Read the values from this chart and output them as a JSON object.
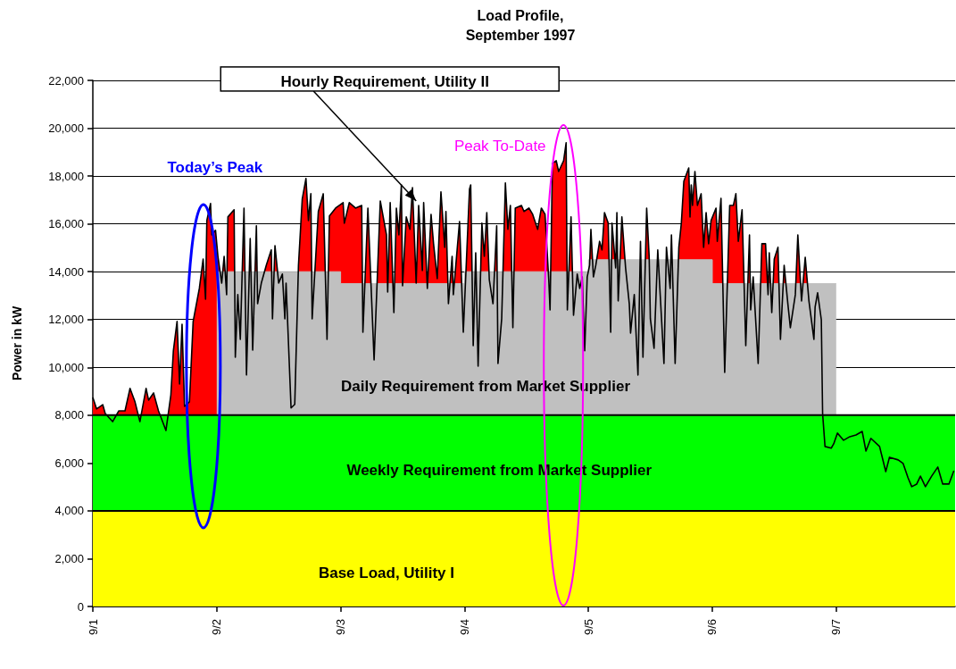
{
  "chart_data": {
    "type": "area",
    "title": "Load Profile,",
    "subtitle": "September 1997",
    "ylabel": "Power in kW",
    "xlim": [
      "1997-09-01",
      "1997-09-07T23:02"
    ],
    "xticks": [
      {
        "value": "1997-09-01",
        "label": "9/1"
      },
      {
        "value": "1997-09-02",
        "label": "9/2"
      },
      {
        "value": "1997-09-03",
        "label": "9/3"
      },
      {
        "value": "1997-09-04",
        "label": "9/4"
      },
      {
        "value": "1997-09-05",
        "label": "9/5"
      },
      {
        "value": "1997-09-06",
        "label": "9/6"
      },
      {
        "value": "1997-09-07",
        "label": "9/7"
      }
    ],
    "ylim": [
      0,
      22000
    ],
    "yticks": [
      0,
      {
        "value": 2000,
        "label": "2,000"
      },
      {
        "value": 4000,
        "label": "4,000"
      },
      {
        "value": 6000,
        "label": "6,000"
      },
      {
        "value": 8000,
        "label": "8,000"
      },
      {
        "value": 10000,
        "label": "10,000"
      },
      {
        "value": 12000,
        "label": "12,000"
      },
      {
        "value": 14000,
        "label": "14,000"
      },
      {
        "value": 16000,
        "label": "16,000"
      },
      {
        "value": 18000,
        "label": "18,000"
      },
      {
        "value": 20000,
        "label": "20,000"
      },
      {
        "value": 22000,
        "label": "22,000"
      }
    ],
    "grid": "y",
    "legend": false,
    "marker": "none",
    "line_style": "solid",
    "x": [
      "1997-09-01T00:00",
      "1997-09-01T00:43",
      "1997-09-01T01:55",
      "1997-09-01T02:24",
      "1997-09-01T03:50",
      "1997-09-01T05:02",
      "1997-09-01T06:14",
      "1997-09-01T07:12",
      "1997-09-01T08:10",
      "1997-09-01T09:07",
      "1997-09-01T10:19",
      "1997-09-01T10:48",
      "1997-09-01T11:46",
      "1997-09-01T12:43",
      "1997-09-01T14:10",
      "1997-09-01T15:07",
      "1997-09-01T15:36",
      "1997-09-01T16:19",
      "1997-09-01T16:48",
      "1997-09-01T17:17",
      "1997-09-01T17:46",
      "1997-09-01T18:43",
      "1997-09-01T19:26",
      "1997-09-01T20:38",
      "1997-09-01T21:22",
      "1997-09-01T21:50",
      "1997-09-01T22:05",
      "1997-09-01T22:48",
      "1997-09-01T23:02",
      "1997-09-01T23:46",
      "1997-09-02T00:14",
      "1997-09-02T00:58",
      "1997-09-02T01:26",
      "1997-09-02T01:55",
      "1997-09-02T02:10",
      "1997-09-02T03:22",
      "1997-09-02T03:36",
      "1997-09-02T04:05",
      "1997-09-02T04:34",
      "1997-09-02T05:17",
      "1997-09-02T05:46",
      "1997-09-02T06:29",
      "1997-09-02T06:58",
      "1997-09-02T07:41",
      "1997-09-02T07:55",
      "1997-09-02T08:38",
      "1997-09-02T09:36",
      "1997-09-02T10:34",
      "1997-09-02T10:48",
      "1997-09-02T11:17",
      "1997-09-02T12:00",
      "1997-09-02T12:43",
      "1997-09-02T13:12",
      "1997-09-02T13:26",
      "1997-09-02T14:24",
      "1997-09-02T15:07",
      "1997-09-02T15:50",
      "1997-09-02T16:34",
      "1997-09-02T17:17",
      "1997-09-02T17:46",
      "1997-09-02T18:14",
      "1997-09-02T18:29",
      "1997-09-02T19:41",
      "1997-09-02T20:38",
      "1997-09-02T21:22",
      "1997-09-02T21:50",
      "1997-09-02T23:02",
      "1997-09-03T00:29",
      "1997-09-03T00:43",
      "1997-09-03T01:41",
      "1997-09-03T02:53",
      "1997-09-03T04:05",
      "1997-09-03T04:19",
      "1997-09-03T05:17",
      "1997-09-03T06:29",
      "1997-09-03T07:41",
      "1997-09-03T08:53",
      "1997-09-03T09:07",
      "1997-09-03T09:36",
      "1997-09-03T10:19",
      "1997-09-03T10:48",
      "1997-09-03T11:17",
      "1997-09-03T11:46",
      "1997-09-03T12:00",
      "1997-09-03T12:43",
      "1997-09-03T13:26",
      "1997-09-03T13:55",
      "1997-09-03T14:38",
      "1997-09-03T15:07",
      "1997-09-03T15:50",
      "1997-09-03T16:05",
      "1997-09-03T16:48",
      "1997-09-03T17:31",
      "1997-09-03T18:00",
      "1997-09-03T18:43",
      "1997-09-03T19:26",
      "1997-09-03T20:10",
      "1997-09-03T20:24",
      "1997-09-03T20:53",
      "1997-09-03T21:36",
      "1997-09-03T21:50",
      "1997-09-03T23:02",
      "1997-09-03T23:46",
      "1997-09-04T00:58",
      "1997-09-04T01:12",
      "1997-09-04T01:41",
      "1997-09-04T02:10",
      "1997-09-04T02:38",
      "1997-09-04T03:22",
      "1997-09-04T03:50",
      "1997-09-04T04:19",
      "1997-09-04T04:48",
      "1997-09-04T05:31",
      "1997-09-04T06:14",
      "1997-09-04T06:29",
      "1997-09-04T07:12",
      "1997-09-04T07:55",
      "1997-09-04T08:24",
      "1997-09-04T08:53",
      "1997-09-04T09:22",
      "1997-09-04T09:50",
      "1997-09-04T11:02",
      "1997-09-04T11:31",
      "1997-09-04T12:29",
      "1997-09-04T13:12",
      "1997-09-04T14:10",
      "1997-09-04T14:53",
      "1997-09-04T15:36",
      "1997-09-04T16:19",
      "1997-09-04T16:34",
      "1997-09-04T17:02",
      "1997-09-04T17:46",
      "1997-09-04T18:14",
      "1997-09-04T19:12",
      "1997-09-04T19:41",
      "1997-09-04T19:55",
      "1997-09-04T20:38",
      "1997-09-04T21:07",
      "1997-09-04T21:50",
      "1997-09-04T22:19",
      "1997-09-04T22:48",
      "1997-09-04T23:17",
      "1997-09-04T23:46",
      "1997-09-05T00:14",
      "1997-09-05T00:29",
      "1997-09-05T00:58",
      "1997-09-05T01:26",
      "1997-09-05T02:10",
      "1997-09-05T02:38",
      "1997-09-05T03:07",
      "1997-09-05T03:50",
      "1997-09-05T04:19",
      "1997-09-05T04:34",
      "1997-09-05T05:17",
      "1997-09-05T05:31",
      "1997-09-05T05:46",
      "1997-09-05T06:29",
      "1997-09-05T07:12",
      "1997-09-05T07:55",
      "1997-09-05T08:10",
      "1997-09-05T08:53",
      "1997-09-05T09:36",
      "1997-09-05T10:05",
      "1997-09-05T10:34",
      "1997-09-05T11:17",
      "1997-09-05T11:46",
      "1997-09-05T12:00",
      "1997-09-05T12:43",
      "1997-09-05T13:26",
      "1997-09-05T14:38",
      "1997-09-05T15:07",
      "1997-09-05T15:50",
      "1997-09-05T16:05",
      "1997-09-05T16:48",
      "1997-09-05T17:31",
      "1997-09-05T18:00",
      "1997-09-05T18:29",
      "1997-09-05T19:26",
      "1997-09-05T19:41",
      "1997-09-05T19:55",
      "1997-09-05T20:10",
      "1997-09-05T20:38",
      "1997-09-05T21:07",
      "1997-09-05T21:50",
      "1997-09-05T22:19",
      "1997-09-05T22:48",
      "1997-09-05T23:17",
      "1997-09-05T23:46",
      "1997-09-06T00:43",
      "1997-09-06T00:58",
      "1997-09-06T01:41",
      "1997-09-06T02:24",
      "1997-09-06T03:22",
      "1997-09-06T04:05",
      "1997-09-06T04:34",
      "1997-09-06T05:02",
      "1997-09-06T05:46",
      "1997-09-06T06:29",
      "1997-09-06T07:12",
      "1997-09-06T07:26",
      "1997-09-06T07:55",
      "1997-09-06T08:53",
      "1997-09-06T09:36",
      "1997-09-06T10:19",
      "1997-09-06T10:48",
      "1997-09-06T11:02",
      "1997-09-06T11:31",
      "1997-09-06T12:00",
      "1997-09-06T12:43",
      "1997-09-06T13:12",
      "1997-09-06T13:55",
      "1997-09-06T14:38",
      "1997-09-06T15:07",
      "1997-09-06T16:05",
      "1997-09-06T16:34",
      "1997-09-06T17:17",
      "1997-09-06T18:00",
      "1997-09-06T18:43",
      "1997-09-06T19:41",
      "1997-09-06T19:55",
      "1997-09-06T20:24",
      "1997-09-06T21:07",
      "1997-09-06T21:22",
      "1997-09-06T21:50",
      "1997-09-06T23:02",
      "1997-09-06T23:31",
      "1997-09-07T00:14",
      "1997-09-07T01:26",
      "1997-09-07T02:38",
      "1997-09-07T03:50",
      "1997-09-07T05:02",
      "1997-09-07T05:46",
      "1997-09-07T06:43",
      "1997-09-07T08:24",
      "1997-09-07T09:36",
      "1997-09-07T10:19",
      "1997-09-07T12:00",
      "1997-09-07T12:58",
      "1997-09-07T13:55",
      "1997-09-07T14:38",
      "1997-09-07T15:36",
      "1997-09-07T16:19",
      "1997-09-07T17:17",
      "1997-09-07T18:29",
      "1997-09-07T19:41",
      "1997-09-07T20:38",
      "1997-09-07T21:50",
      "1997-09-07T22:48"
    ],
    "series": [
      {
        "name": "Base Load, Utility I",
        "color": "#ffff00",
        "x": [
          "1997-09-01",
          "1997-09-07T23:02"
        ],
        "values": [
          4000,
          4000
        ]
      },
      {
        "name": "Weekly Requirement from Market Supplier",
        "color": "#00ff00",
        "x": [
          "1997-09-01",
          "1997-09-07T23:02"
        ],
        "values": [
          8000,
          8000
        ]
      },
      {
        "name": "Daily Requirement from Market Supplier",
        "color": "#c0c0c0",
        "x": [
          "1997-09-02",
          "1997-09-03",
          "1997-09-03",
          "1997-09-04",
          "1997-09-04",
          "1997-09-05",
          "1997-09-05",
          "1997-09-06",
          "1997-09-06",
          "1997-09-07"
        ],
        "values": [
          14000,
          14000,
          13500,
          13500,
          14000,
          14000,
          14500,
          14500,
          13500,
          13500
        ]
      },
      {
        "color": "#ff0000",
        "values": [
          8740,
          8260,
          8440,
          8070,
          7730,
          8180,
          8180,
          9120,
          8560,
          7730,
          9120,
          8630,
          8930,
          8180,
          7360,
          8850,
          10690,
          11920,
          9300,
          11800,
          8370,
          8560,
          11920,
          13300,
          14530,
          12850,
          16140,
          16850,
          15540,
          15730,
          14640,
          13520,
          14640,
          13040,
          16290,
          16590,
          10420,
          13040,
          11170,
          16660,
          9680,
          15390,
          10720,
          15920,
          12660,
          13520,
          14270,
          14910,
          12030,
          15090,
          13520,
          13900,
          12030,
          13520,
          8300,
          8450,
          14270,
          17040,
          17900,
          16140,
          17260,
          12030,
          16520,
          17260,
          11170,
          16330,
          16660,
          16890,
          16030,
          16890,
          16660,
          16770,
          11470,
          16660,
          10310,
          16960,
          15540,
          13150,
          16890,
          12290,
          16660,
          15540,
          17630,
          13410,
          16290,
          15770,
          17520,
          13520,
          16770,
          14050,
          16890,
          13300,
          16400,
          15170,
          13710,
          17340,
          15020,
          16520,
          12660,
          14640,
          13040,
          16100,
          11470,
          17450,
          17630,
          10910,
          14790,
          10050,
          16030,
          14640,
          16470,
          13670,
          12660,
          15920,
          10160,
          12030,
          17710,
          15770,
          16770,
          11660,
          16660,
          16770,
          16520,
          16660,
          16400,
          15770,
          16660,
          16400,
          13670,
          12400,
          18530,
          18640,
          18190,
          18640,
          19390,
          12400,
          16290,
          12180,
          13900,
          13300,
          13780,
          10690,
          13780,
          14270,
          15770,
          13780,
          14270,
          15270,
          14910,
          16470,
          16030,
          11470,
          16030,
          14160,
          16470,
          12780,
          16290,
          14160,
          12660,
          11430,
          13040,
          9680,
          15270,
          10420,
          16660,
          14640,
          12030,
          10800,
          14910,
          10160,
          15020,
          13300,
          15540,
          10160,
          15020,
          16030,
          17780,
          18340,
          16290,
          17630,
          16770,
          18190,
          16770,
          17260,
          15020,
          16470,
          15170,
          16140,
          16660,
          15270,
          17070,
          9790,
          16770,
          16770,
          17260,
          15270,
          16590,
          10910,
          15540,
          12400,
          13780,
          10160,
          15170,
          15170,
          13040,
          14790,
          12290,
          14530,
          15020,
          11170,
          14270,
          12660,
          11660,
          13040,
          15540,
          12780,
          14600,
          12780,
          11170,
          12530,
          13120,
          11990,
          8070,
          6690,
          6620,
          6800,
          7250,
          6950,
          7100,
          7170,
          7320,
          6500,
          7030,
          6690,
          5640,
          6240,
          6130,
          5980,
          5380,
          5010,
          5120,
          5450,
          5010,
          5450,
          5830,
          5120,
          5120,
          5680
        ]
      }
    ],
    "annotations": [
      {
        "text": "Hourly Requirement, Utility II",
        "x": "1997-09-03T14:38",
        "y": 16960
      },
      {
        "text": "Today’s Peak",
        "x": "1997-09-01T22:48",
        "y": 16850
      },
      {
        "text": "Peak To-Date",
        "x": "1997-09-04T19:41",
        "y": 19390
      }
    ]
  }
}
